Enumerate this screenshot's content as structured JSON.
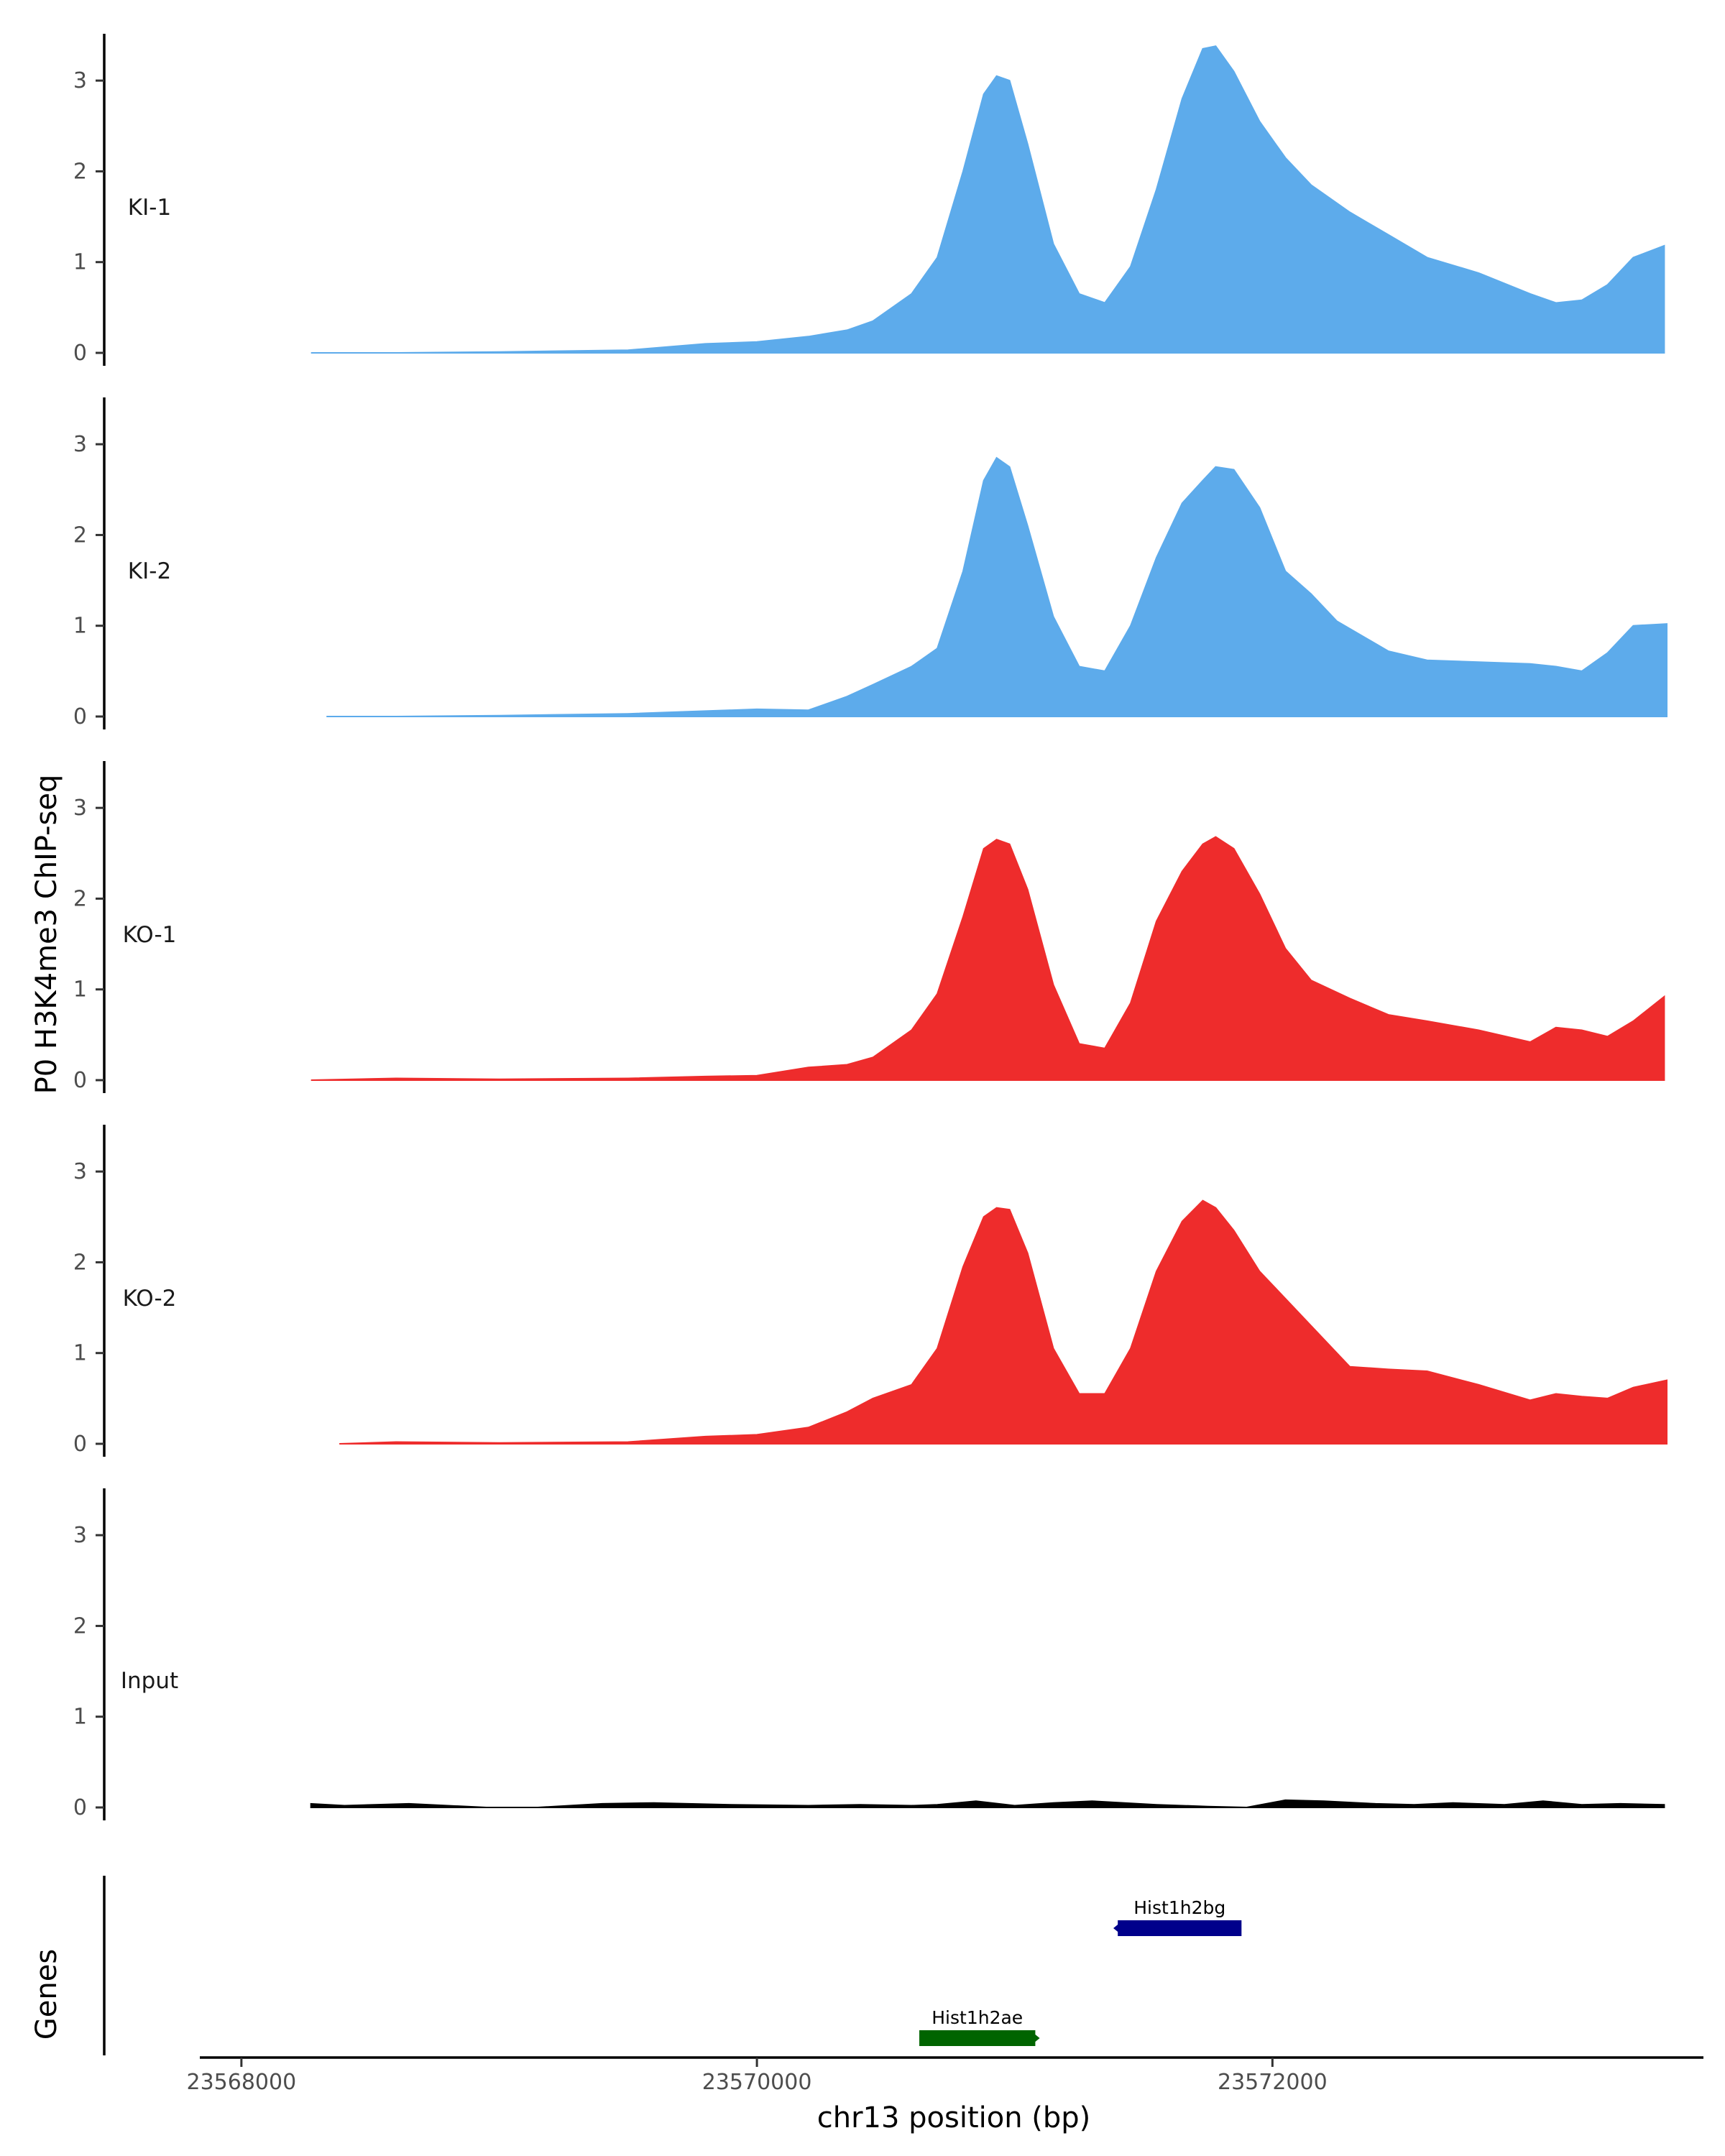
{
  "chart_data": {
    "type": "area",
    "y_axis_title": "P0 H3K4me3 ChIP-seq",
    "x_axis_title": "chr13 position (bp)",
    "xlim": [
      23567900,
      23573700
    ],
    "ylim": [
      0,
      3.5
    ],
    "y_ticks": [
      "0",
      "1",
      "2",
      "3"
    ],
    "x_ticks": [
      "23568000",
      "23570000",
      "23572000"
    ],
    "x_tick_values": [
      23568000,
      23570000,
      23572000
    ],
    "genes_title": "Genes",
    "series": [
      {
        "name": "KI-1",
        "color": "#5DABEB",
        "x": [
          23568270,
          23568600,
          23569000,
          23569500,
          23569800,
          23570000,
          23570200,
          23570350,
          23570450,
          23570600,
          23570700,
          23570800,
          23570880,
          23570930,
          23570980,
          23571050,
          23571150,
          23571250,
          23571350,
          23571450,
          23571550,
          23571650,
          23571730,
          23571780,
          23571850,
          23571950,
          23572050,
          23572150,
          23572300,
          23572450,
          23572600,
          23572800,
          23573000,
          23573100,
          23573200,
          23573300,
          23573400,
          23573520
        ],
        "values": [
          0.0,
          0.0,
          0.01,
          0.03,
          0.1,
          0.12,
          0.18,
          0.25,
          0.35,
          0.65,
          1.05,
          2.0,
          2.85,
          3.05,
          3.0,
          2.3,
          1.2,
          0.65,
          0.55,
          0.95,
          1.8,
          2.8,
          3.35,
          3.38,
          3.1,
          2.55,
          2.15,
          1.85,
          1.55,
          1.3,
          1.05,
          0.88,
          0.65,
          0.55,
          0.58,
          0.75,
          1.05,
          1.18
        ]
      },
      {
        "name": "KI-2",
        "color": "#5DABEB",
        "x": [
          23568330,
          23568600,
          23569000,
          23569500,
          23569800,
          23570000,
          23570200,
          23570350,
          23570450,
          23570600,
          23570700,
          23570800,
          23570880,
          23570930,
          23570980,
          23571050,
          23571150,
          23571250,
          23571350,
          23571450,
          23571550,
          23571650,
          23571730,
          23571780,
          23571850,
          23571950,
          23572050,
          23572150,
          23572250,
          23572450,
          23572600,
          23572800,
          23573000,
          23573100,
          23573200,
          23573300,
          23573400,
          23573530
        ],
        "values": [
          0.0,
          0.0,
          0.01,
          0.03,
          0.06,
          0.08,
          0.07,
          0.22,
          0.35,
          0.55,
          0.75,
          1.6,
          2.6,
          2.85,
          2.75,
          2.1,
          1.1,
          0.55,
          0.5,
          1.0,
          1.75,
          2.35,
          2.6,
          2.75,
          2.72,
          2.3,
          1.6,
          1.35,
          1.05,
          0.72,
          0.62,
          0.6,
          0.58,
          0.55,
          0.5,
          0.7,
          1.0,
          1.02
        ]
      },
      {
        "name": "KO-1",
        "color": "#EE2C2C",
        "x": [
          23568270,
          23568600,
          23569000,
          23569500,
          23569800,
          23570000,
          23570200,
          23570350,
          23570450,
          23570600,
          23570700,
          23570800,
          23570880,
          23570930,
          23570980,
          23571050,
          23571150,
          23571250,
          23571350,
          23571450,
          23571550,
          23571650,
          23571730,
          23571780,
          23571850,
          23571950,
          23572050,
          23572150,
          23572300,
          23572450,
          23572600,
          23572800,
          23573000,
          23573100,
          23573200,
          23573300,
          23573400,
          23573520
        ],
        "values": [
          0.0,
          0.02,
          0.01,
          0.02,
          0.04,
          0.05,
          0.14,
          0.17,
          0.25,
          0.55,
          0.95,
          1.8,
          2.55,
          2.65,
          2.6,
          2.1,
          1.05,
          0.4,
          0.35,
          0.85,
          1.75,
          2.3,
          2.6,
          2.68,
          2.55,
          2.05,
          1.45,
          1.1,
          0.9,
          0.72,
          0.65,
          0.55,
          0.42,
          0.58,
          0.55,
          0.48,
          0.65,
          0.92
        ]
      },
      {
        "name": "KO-2",
        "color": "#EE2C2C",
        "x": [
          23568380,
          23568600,
          23569000,
          23569500,
          23569800,
          23570000,
          23570200,
          23570350,
          23570450,
          23570600,
          23570700,
          23570800,
          23570880,
          23570930,
          23570980,
          23571050,
          23571150,
          23571250,
          23571350,
          23571450,
          23571550,
          23571650,
          23571730,
          23571780,
          23571850,
          23571950,
          23572050,
          23572150,
          23572300,
          23572450,
          23572600,
          23572800,
          23573000,
          23573100,
          23573200,
          23573300,
          23573400,
          23573530
        ],
        "values": [
          0.0,
          0.02,
          0.01,
          0.02,
          0.08,
          0.1,
          0.18,
          0.35,
          0.5,
          0.65,
          1.05,
          1.95,
          2.5,
          2.6,
          2.58,
          2.1,
          1.05,
          0.55,
          0.55,
          1.05,
          1.9,
          2.45,
          2.68,
          2.6,
          2.35,
          1.9,
          1.6,
          1.3,
          0.85,
          0.82,
          0.8,
          0.65,
          0.48,
          0.55,
          0.52,
          0.5,
          0.62,
          0.7
        ]
      },
      {
        "name": "Input",
        "color": "#000000",
        "x": [
          23568270,
          23568400,
          23568650,
          23568950,
          23569150,
          23569400,
          23569600,
          23569900,
          23570200,
          23570400,
          23570600,
          23570700,
          23570850,
          23571000,
          23571150,
          23571300,
          23571550,
          23571750,
          23571900,
          23572050,
          23572200,
          23572400,
          23572550,
          23572700,
          23572900,
          23573050,
          23573200,
          23573350,
          23573520
        ],
        "values": [
          0.04,
          0.02,
          0.04,
          0.0,
          0.0,
          0.04,
          0.05,
          0.03,
          0.02,
          0.03,
          0.02,
          0.03,
          0.07,
          0.02,
          0.05,
          0.07,
          0.03,
          0.01,
          0.0,
          0.08,
          0.07,
          0.04,
          0.03,
          0.05,
          0.03,
          0.07,
          0.03,
          0.04,
          0.03
        ]
      }
    ],
    "genes": [
      {
        "name": "Hist1h2bg",
        "start": 23571400,
        "end": 23571880,
        "strand": "-",
        "color": "#00008B",
        "row": 1
      },
      {
        "name": "Hist1h2ae",
        "start": 23570630,
        "end": 23571080,
        "strand": "+",
        "color": "#006400",
        "row": 2
      }
    ]
  }
}
